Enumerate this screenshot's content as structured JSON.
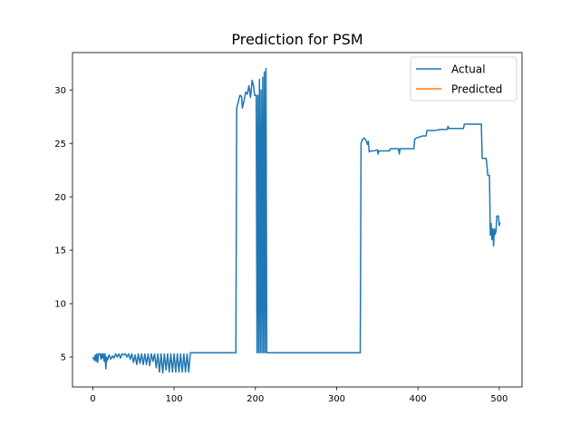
{
  "chart_data": {
    "type": "line",
    "title": "Prediction for PSM",
    "xlabel": "",
    "ylabel": "",
    "xlim": [
      -25,
      528
    ],
    "ylim": [
      2.2,
      33.5
    ],
    "xticks": [
      0,
      100,
      200,
      300,
      400,
      500
    ],
    "yticks": [
      5,
      10,
      15,
      20,
      25,
      30
    ],
    "grid": false,
    "legend_position": "top-right",
    "series": [
      {
        "name": "Actual",
        "color": "#1f77b4",
        "points": [
          [
            0,
            5.0
          ],
          [
            2,
            4.7
          ],
          [
            3,
            5.2
          ],
          [
            4,
            4.6
          ],
          [
            5,
            5.3
          ],
          [
            6,
            4.5
          ],
          [
            7,
            5.3
          ],
          [
            9,
            5.3
          ],
          [
            10,
            4.8
          ],
          [
            11,
            5.3
          ],
          [
            12,
            4.9
          ],
          [
            13,
            5.3
          ],
          [
            14,
            4.6
          ],
          [
            15,
            5.3
          ],
          [
            16,
            3.9
          ],
          [
            17,
            5.0
          ],
          [
            18,
            4.7
          ],
          [
            20,
            5.2
          ],
          [
            22,
            4.8
          ],
          [
            24,
            5.1
          ],
          [
            26,
            4.9
          ],
          [
            28,
            5.3
          ],
          [
            30,
            5.0
          ],
          [
            32,
            5.3
          ],
          [
            34,
            4.9
          ],
          [
            36,
            5.3
          ],
          [
            38,
            5.2
          ],
          [
            40,
            5.3
          ],
          [
            42,
            5.0
          ],
          [
            44,
            5.3
          ],
          [
            46,
            4.8
          ],
          [
            48,
            5.3
          ],
          [
            50,
            4.5
          ],
          [
            52,
            5.2
          ],
          [
            54,
            4.3
          ],
          [
            56,
            5.3
          ],
          [
            58,
            4.4
          ],
          [
            60,
            5.3
          ],
          [
            62,
            4.3
          ],
          [
            64,
            5.3
          ],
          [
            66,
            4.3
          ],
          [
            68,
            5.3
          ],
          [
            70,
            4.2
          ],
          [
            72,
            5.3
          ],
          [
            74,
            4.6
          ],
          [
            76,
            5.3
          ],
          [
            78,
            4.0
          ],
          [
            80,
            5.3
          ],
          [
            82,
            3.6
          ],
          [
            84,
            5.3
          ],
          [
            86,
            3.5
          ],
          [
            88,
            5.3
          ],
          [
            90,
            3.8
          ],
          [
            92,
            5.3
          ],
          [
            94,
            3.6
          ],
          [
            96,
            5.3
          ],
          [
            98,
            3.6
          ],
          [
            100,
            5.3
          ],
          [
            102,
            3.6
          ],
          [
            104,
            5.3
          ],
          [
            106,
            3.6
          ],
          [
            108,
            5.3
          ],
          [
            110,
            3.6
          ],
          [
            112,
            5.3
          ],
          [
            114,
            3.6
          ],
          [
            116,
            5.3
          ],
          [
            118,
            3.6
          ],
          [
            120,
            5.4
          ],
          [
            150,
            5.4
          ],
          [
            176,
            5.4
          ],
          [
            177,
            28.3
          ],
          [
            179,
            28.9
          ],
          [
            181,
            29.5
          ],
          [
            183,
            29.4
          ],
          [
            184,
            28.3
          ],
          [
            186,
            29.0
          ],
          [
            188,
            29.8
          ],
          [
            190,
            29.6
          ],
          [
            192,
            30.4
          ],
          [
            194,
            29.3
          ],
          [
            196,
            30.9
          ],
          [
            198,
            30.3
          ],
          [
            199,
            29.5
          ],
          [
            201,
            29.5
          ],
          [
            202,
            5.4
          ],
          [
            203,
            29.5
          ],
          [
            204,
            5.4
          ],
          [
            205,
            31.0
          ],
          [
            206,
            5.4
          ],
          [
            207,
            30.0
          ],
          [
            208,
            5.4
          ],
          [
            209,
            31.2
          ],
          [
            210,
            5.4
          ],
          [
            211,
            31.7
          ],
          [
            212,
            5.4
          ],
          [
            213,
            32.0
          ],
          [
            214,
            5.4
          ],
          [
            250,
            5.4
          ],
          [
            300,
            5.4
          ],
          [
            329,
            5.4
          ],
          [
            330,
            25.0
          ],
          [
            332,
            25.4
          ],
          [
            334,
            25.5
          ],
          [
            336,
            25.3
          ],
          [
            338,
            24.9
          ],
          [
            339,
            25.2
          ],
          [
            340,
            24.2
          ],
          [
            342,
            24.3
          ],
          [
            346,
            24.3
          ],
          [
            350,
            24.4
          ],
          [
            351,
            24.0
          ],
          [
            352,
            24.3
          ],
          [
            360,
            24.3
          ],
          [
            365,
            24.3
          ],
          [
            366,
            24.5
          ],
          [
            374,
            24.5
          ],
          [
            376,
            24.5
          ],
          [
            377,
            24.0
          ],
          [
            378,
            24.5
          ],
          [
            395,
            24.5
          ],
          [
            396,
            25.4
          ],
          [
            398,
            25.5
          ],
          [
            402,
            25.6
          ],
          [
            406,
            25.7
          ],
          [
            410,
            25.7
          ],
          [
            411,
            26.2
          ],
          [
            420,
            26.2
          ],
          [
            428,
            26.3
          ],
          [
            436,
            26.3
          ],
          [
            437,
            26.6
          ],
          [
            438,
            26.4
          ],
          [
            450,
            26.4
          ],
          [
            456,
            26.4
          ],
          [
            457,
            26.8
          ],
          [
            470,
            26.8
          ],
          [
            478,
            26.8
          ],
          [
            479,
            23.6
          ],
          [
            484,
            23.6
          ],
          [
            486,
            22.0
          ],
          [
            488,
            22.0
          ],
          [
            489,
            16.4
          ],
          [
            490,
            17.5
          ],
          [
            491,
            16.0
          ],
          [
            492,
            17.0
          ],
          [
            493,
            15.4
          ],
          [
            494,
            17.0
          ],
          [
            495,
            16.5
          ],
          [
            496,
            16.8
          ],
          [
            497,
            18.2
          ],
          [
            499,
            18.2
          ],
          [
            500,
            17.3
          ],
          [
            501,
            17.6
          ]
        ]
      },
      {
        "name": "Predicted",
        "color": "#ff7f0e",
        "points": []
      }
    ]
  }
}
